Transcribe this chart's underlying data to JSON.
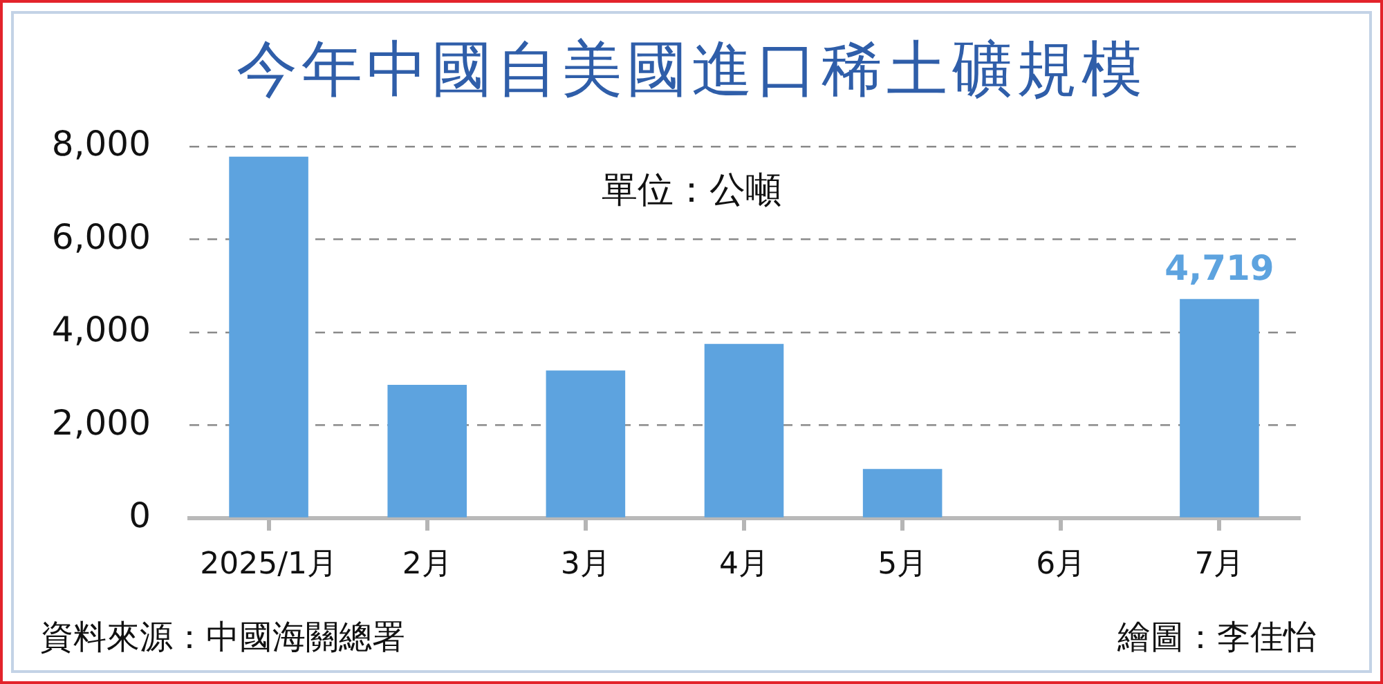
{
  "chart_data": {
    "type": "bar",
    "title": "今年中國自美國進口稀土礦規模",
    "categories": [
      "2025/1月",
      "2月",
      "3月",
      "4月",
      "5月",
      "6月",
      "7月"
    ],
    "values": [
      7780,
      2870,
      3180,
      3750,
      1060,
      0,
      4719
    ],
    "value_labels": [
      null,
      null,
      null,
      null,
      null,
      null,
      "4,719"
    ],
    "color": "#5da3df",
    "ylim": [
      0,
      8000
    ],
    "yticks": [
      0,
      {
        "value": 2000,
        "label": "2,000"
      },
      {
        "value": 4000,
        "label": "4,000"
      },
      {
        "value": 6000,
        "label": "6,000"
      },
      {
        "value": 8000,
        "label": "8,000"
      }
    ],
    "grid": "y",
    "annotations": [
      "單位：公噸",
      "資料來源：中國海關總署",
      "繪圖：李佳怡"
    ]
  }
}
